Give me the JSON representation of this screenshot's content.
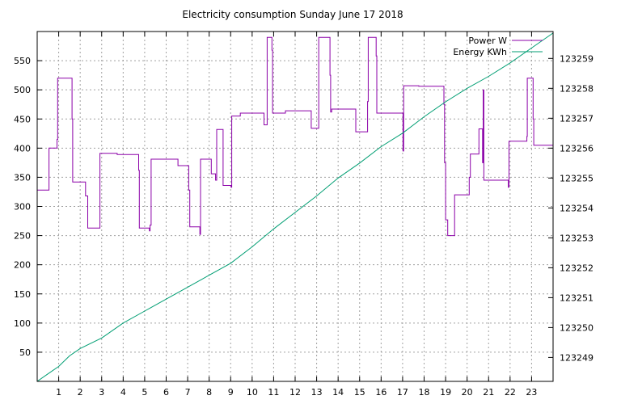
{
  "chart_data": {
    "type": "line",
    "title": "Electricity consumption Sunday June 17 2018",
    "xlabel": "",
    "ylabel": "",
    "y2label": "",
    "xlim": [
      0,
      24
    ],
    "ylim": [
      0,
      600
    ],
    "y2lim": [
      123248.2,
      123259.9
    ],
    "x_ticks": [
      1,
      2,
      3,
      4,
      5,
      6,
      7,
      8,
      9,
      10,
      11,
      12,
      13,
      14,
      15,
      16,
      17,
      18,
      19,
      20,
      21,
      22,
      23
    ],
    "y_ticks": [
      50,
      100,
      150,
      200,
      250,
      300,
      350,
      400,
      450,
      500,
      550
    ],
    "y2_ticks": [
      123249,
      123250,
      123251,
      123252,
      123253,
      123254,
      123255,
      123256,
      123257,
      123258,
      123259
    ],
    "grid": true,
    "legend_position": "top-right",
    "series": [
      {
        "name": "Power W",
        "axis": "left",
        "color": "#8b00a8",
        "step": true,
        "points": [
          [
            0.0,
            328
          ],
          [
            0.55,
            328
          ],
          [
            0.55,
            400
          ],
          [
            0.9,
            400
          ],
          [
            0.92,
            415
          ],
          [
            0.95,
            520
          ],
          [
            1.6,
            520
          ],
          [
            1.62,
            450
          ],
          [
            1.65,
            342
          ],
          [
            2.2,
            342
          ],
          [
            2.25,
            318
          ],
          [
            2.35,
            263
          ],
          [
            2.9,
            263
          ],
          [
            2.92,
            391
          ],
          [
            3.7,
            391
          ],
          [
            3.72,
            389
          ],
          [
            4.7,
            389
          ],
          [
            4.72,
            362
          ],
          [
            4.75,
            263
          ],
          [
            5.2,
            263
          ],
          [
            5.22,
            258
          ],
          [
            5.25,
            268
          ],
          [
            5.3,
            381
          ],
          [
            6.5,
            381
          ],
          [
            6.55,
            370
          ],
          [
            7.0,
            370
          ],
          [
            7.05,
            328
          ],
          [
            7.1,
            265
          ],
          [
            7.55,
            265
          ],
          [
            7.57,
            252
          ],
          [
            7.6,
            381
          ],
          [
            8.05,
            381
          ],
          [
            8.1,
            356
          ],
          [
            8.25,
            356
          ],
          [
            8.3,
            345
          ],
          [
            8.35,
            432
          ],
          [
            8.6,
            432
          ],
          [
            8.65,
            336
          ],
          [
            9.0,
            336
          ],
          [
            9.02,
            333
          ],
          [
            9.05,
            455
          ],
          [
            9.4,
            455
          ],
          [
            9.45,
            460
          ],
          [
            10.5,
            460
          ],
          [
            10.55,
            440
          ],
          [
            10.65,
            440
          ],
          [
            10.7,
            590
          ],
          [
            10.9,
            590
          ],
          [
            10.92,
            568
          ],
          [
            10.95,
            460
          ],
          [
            11.5,
            460
          ],
          [
            11.55,
            464
          ],
          [
            12.7,
            464
          ],
          [
            12.75,
            434
          ],
          [
            13.05,
            434
          ],
          [
            13.1,
            590
          ],
          [
            13.6,
            590
          ],
          [
            13.62,
            525
          ],
          [
            13.65,
            462
          ],
          [
            13.7,
            467
          ],
          [
            14.8,
            467
          ],
          [
            14.82,
            428
          ],
          [
            15.35,
            428
          ],
          [
            15.37,
            480
          ],
          [
            15.4,
            590
          ],
          [
            15.75,
            590
          ],
          [
            15.77,
            558
          ],
          [
            15.8,
            460
          ],
          [
            17.0,
            460
          ],
          [
            17.02,
            395
          ],
          [
            17.05,
            507
          ],
          [
            17.7,
            507
          ],
          [
            17.75,
            506
          ],
          [
            18.9,
            506
          ],
          [
            18.92,
            475
          ],
          [
            18.95,
            375
          ],
          [
            19.0,
            277
          ],
          [
            19.1,
            250
          ],
          [
            19.4,
            250
          ],
          [
            19.42,
            320
          ],
          [
            20.05,
            320
          ],
          [
            20.1,
            350
          ],
          [
            20.15,
            390
          ],
          [
            20.5,
            390
          ],
          [
            20.55,
            433
          ],
          [
            20.7,
            433
          ],
          [
            20.72,
            375
          ],
          [
            20.75,
            500
          ],
          [
            20.78,
            345
          ],
          [
            21.9,
            345
          ],
          [
            21.92,
            333
          ],
          [
            21.95,
            412
          ],
          [
            22.75,
            412
          ],
          [
            22.78,
            420
          ],
          [
            22.8,
            520
          ],
          [
            23.05,
            520
          ],
          [
            23.07,
            450
          ],
          [
            23.1,
            405
          ],
          [
            24.0,
            405
          ]
        ]
      },
      {
        "name": "Energy KWh",
        "axis": "right",
        "color": "#009e73",
        "step": false,
        "points": [
          [
            0,
            123248.2
          ],
          [
            0.5,
            123248.45
          ],
          [
            1,
            123248.7
          ],
          [
            1.5,
            123249.05
          ],
          [
            2,
            123249.3
          ],
          [
            3,
            123249.65
          ],
          [
            4,
            123250.15
          ],
          [
            5,
            123250.55
          ],
          [
            6,
            123250.95
          ],
          [
            7,
            123251.35
          ],
          [
            8,
            123251.75
          ],
          [
            9,
            123252.15
          ],
          [
            10,
            123252.7
          ],
          [
            11,
            123253.3
          ],
          [
            12,
            123253.85
          ],
          [
            13,
            123254.4
          ],
          [
            14,
            123255.0
          ],
          [
            15,
            123255.5
          ],
          [
            16,
            123256.05
          ],
          [
            17,
            123256.5
          ],
          [
            18,
            123257.05
          ],
          [
            19,
            123257.55
          ],
          [
            20,
            123258.0
          ],
          [
            21,
            123258.4
          ],
          [
            22,
            123258.85
          ],
          [
            23,
            123259.35
          ],
          [
            24,
            123259.85
          ]
        ]
      }
    ]
  }
}
